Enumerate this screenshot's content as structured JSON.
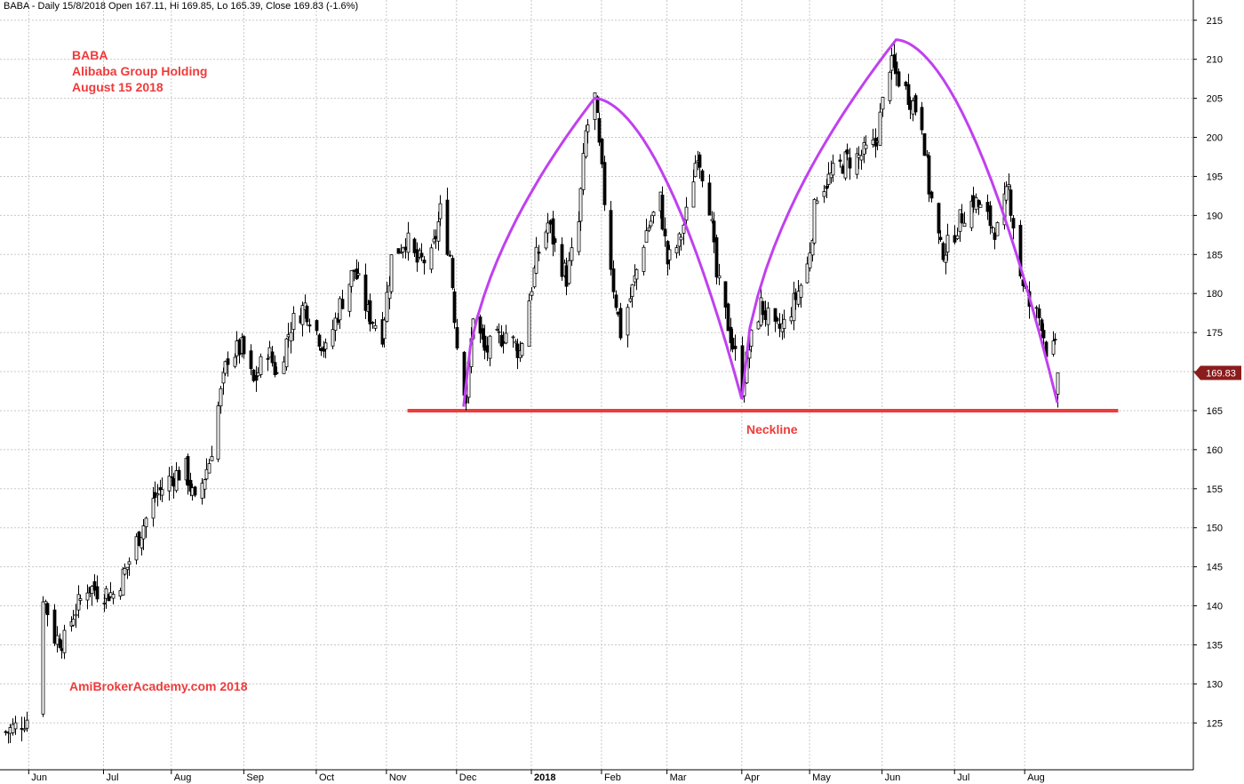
{
  "header": "BABA - Daily 15/8/2018 Open 167.11, Hi 169.85, Lo 165.39, Close 169.83 (-1.6%)",
  "annotations": {
    "ticker": "BABA",
    "company": "Alibaba Group Holding",
    "date": "August 15 2018",
    "watermark": "AmiBrokerAcademy.com  2018",
    "neckline": "Neckline"
  },
  "last_price_label": "169.83",
  "colors": {
    "grid": "#c8c8c8",
    "annotation": "#ef3b3b",
    "arc": "#c040f0",
    "neckline": "#ef3b3b",
    "price_box": "#8b1c1c",
    "candle": "#000000"
  },
  "chart_data": {
    "type": "candlestick",
    "title": "BABA - Daily 15/8/2018",
    "ylim": [
      119,
      216
    ],
    "y_ticks": [
      125,
      130,
      135,
      140,
      145,
      150,
      155,
      160,
      165,
      170,
      175,
      180,
      185,
      190,
      195,
      200,
      205,
      210,
      215
    ],
    "x_labels": [
      {
        "label": "Jun",
        "date": "2017-06-01",
        "bold": false
      },
      {
        "label": "Jul",
        "date": "2017-07-03",
        "bold": false
      },
      {
        "label": "Aug",
        "date": "2017-08-01",
        "bold": false
      },
      {
        "label": "Sep",
        "date": "2017-09-01",
        "bold": false
      },
      {
        "label": "Oct",
        "date": "2017-10-02",
        "bold": false
      },
      {
        "label": "Nov",
        "date": "2017-11-01",
        "bold": false
      },
      {
        "label": "Dec",
        "date": "2017-12-01",
        "bold": false
      },
      {
        "label": "2018",
        "date": "2018-01-02",
        "bold": true
      },
      {
        "label": "Feb",
        "date": "2018-02-01",
        "bold": false
      },
      {
        "label": "Mar",
        "date": "2018-03-01",
        "bold": false
      },
      {
        "label": "Apr",
        "date": "2018-04-02",
        "bold": false
      },
      {
        "label": "May",
        "date": "2018-05-01",
        "bold": false
      },
      {
        "label": "Jun",
        "date": "2018-06-01",
        "bold": false
      },
      {
        "label": "Jul",
        "date": "2018-07-02",
        "bold": false
      },
      {
        "label": "Aug",
        "date": "2018-08-01",
        "bold": false
      }
    ],
    "grid": true,
    "close_path": [
      [
        "2017-05-22",
        123.8
      ],
      [
        "2017-05-26",
        124.5
      ],
      [
        "2017-05-31",
        125.6
      ],
      [
        "2017-06-07",
        141.5
      ],
      [
        "2017-06-12",
        136.0
      ],
      [
        "2017-06-16",
        135.5
      ],
      [
        "2017-06-20",
        139.0
      ],
      [
        "2017-06-26",
        142.5
      ],
      [
        "2017-06-30",
        142.0
      ],
      [
        "2017-07-07",
        141.5
      ],
      [
        "2017-07-13",
        145.0
      ],
      [
        "2017-07-18",
        149.0
      ],
      [
        "2017-07-25",
        154.0
      ],
      [
        "2017-08-01",
        156.5
      ],
      [
        "2017-08-07",
        157.5
      ],
      [
        "2017-08-11",
        153.0
      ],
      [
        "2017-08-17",
        158.5
      ],
      [
        "2017-08-21",
        165.5
      ],
      [
        "2017-08-25",
        172.0
      ],
      [
        "2017-08-31",
        173.0
      ],
      [
        "2017-09-05",
        168.5
      ],
      [
        "2017-09-11",
        173.0
      ],
      [
        "2017-09-15",
        169.5
      ],
      [
        "2017-09-21",
        176.0
      ],
      [
        "2017-09-27",
        178.5
      ],
      [
        "2017-10-03",
        174.5
      ],
      [
        "2017-10-06",
        172.5
      ],
      [
        "2017-10-12",
        178.5
      ],
      [
        "2017-10-18",
        183.0
      ],
      [
        "2017-10-24",
        177.5
      ],
      [
        "2017-10-30",
        175.0
      ],
      [
        "2017-11-03",
        184.5
      ],
      [
        "2017-11-09",
        187.0
      ],
      [
        "2017-11-14",
        184.0
      ],
      [
        "2017-11-20",
        184.5
      ],
      [
        "2017-11-24",
        190.5
      ],
      [
        "2017-11-28",
        185.0
      ],
      [
        "2017-12-01",
        173.5
      ],
      [
        "2017-12-05",
        166.5
      ],
      [
        "2017-12-08",
        177.5
      ],
      [
        "2017-12-13",
        172.5
      ],
      [
        "2017-12-18",
        174.0
      ],
      [
        "2017-12-22",
        175.0
      ],
      [
        "2017-12-28",
        172.5
      ],
      [
        "2018-01-04",
        184.5
      ],
      [
        "2018-01-09",
        189.0
      ],
      [
        "2018-01-12",
        186.0
      ],
      [
        "2018-01-17",
        182.0
      ],
      [
        "2018-01-22",
        189.0
      ],
      [
        "2018-01-25",
        200.5
      ],
      [
        "2018-01-29",
        205.0
      ],
      [
        "2018-02-02",
        192.0
      ],
      [
        "2018-02-06",
        181.0
      ],
      [
        "2018-02-09",
        175.0
      ],
      [
        "2018-02-14",
        180.5
      ],
      [
        "2018-02-20",
        188.0
      ],
      [
        "2018-02-26",
        192.0
      ],
      [
        "2018-03-01",
        184.0
      ],
      [
        "2018-03-06",
        186.5
      ],
      [
        "2018-03-09",
        190.0
      ],
      [
        "2018-03-14",
        198.5
      ],
      [
        "2018-03-19",
        191.5
      ],
      [
        "2018-03-22",
        182.0
      ],
      [
        "2018-03-27",
        176.0
      ],
      [
        "2018-04-02",
        168.0
      ],
      [
        "2018-04-05",
        173.0
      ],
      [
        "2018-04-10",
        178.5
      ],
      [
        "2018-04-16",
        175.0
      ],
      [
        "2018-04-20",
        176.0
      ],
      [
        "2018-04-25",
        179.5
      ],
      [
        "2018-04-30",
        183.5
      ],
      [
        "2018-05-04",
        193.0
      ],
      [
        "2018-05-10",
        195.0
      ],
      [
        "2018-05-16",
        197.0
      ],
      [
        "2018-05-22",
        197.5
      ],
      [
        "2018-05-29",
        199.0
      ],
      [
        "2018-06-04",
        209.5
      ],
      [
        "2018-06-08",
        207.5
      ],
      [
        "2018-06-13",
        205.0
      ],
      [
        "2018-06-18",
        202.0
      ],
      [
        "2018-06-21",
        193.5
      ],
      [
        "2018-06-26",
        185.5
      ],
      [
        "2018-06-29",
        186.0
      ],
      [
        "2018-07-05",
        190.0
      ],
      [
        "2018-07-10",
        192.0
      ],
      [
        "2018-07-16",
        189.5
      ],
      [
        "2018-07-20",
        188.0
      ],
      [
        "2018-07-25",
        193.5
      ],
      [
        "2018-07-30",
        182.5
      ],
      [
        "2018-08-03",
        178.5
      ],
      [
        "2018-08-08",
        176.5
      ],
      [
        "2018-08-10",
        173.0
      ],
      [
        "2018-08-14",
        172.6
      ],
      [
        "2018-08-15",
        169.83
      ]
    ],
    "neckline": {
      "price": 165,
      "from": "2017-11-10",
      "to": "2018-09-10"
    },
    "arcs": [
      {
        "from": [
          "2017-12-04",
          165.5
        ],
        "peak": [
          "2018-01-29",
          205.0
        ],
        "to": [
          "2018-04-02",
          166.5
        ]
      },
      {
        "from": [
          "2018-04-02",
          166.5
        ],
        "peak": [
          "2018-06-07",
          212.5
        ],
        "to": [
          "2018-08-15",
          166.0
        ]
      }
    ],
    "last_close": 169.83
  }
}
